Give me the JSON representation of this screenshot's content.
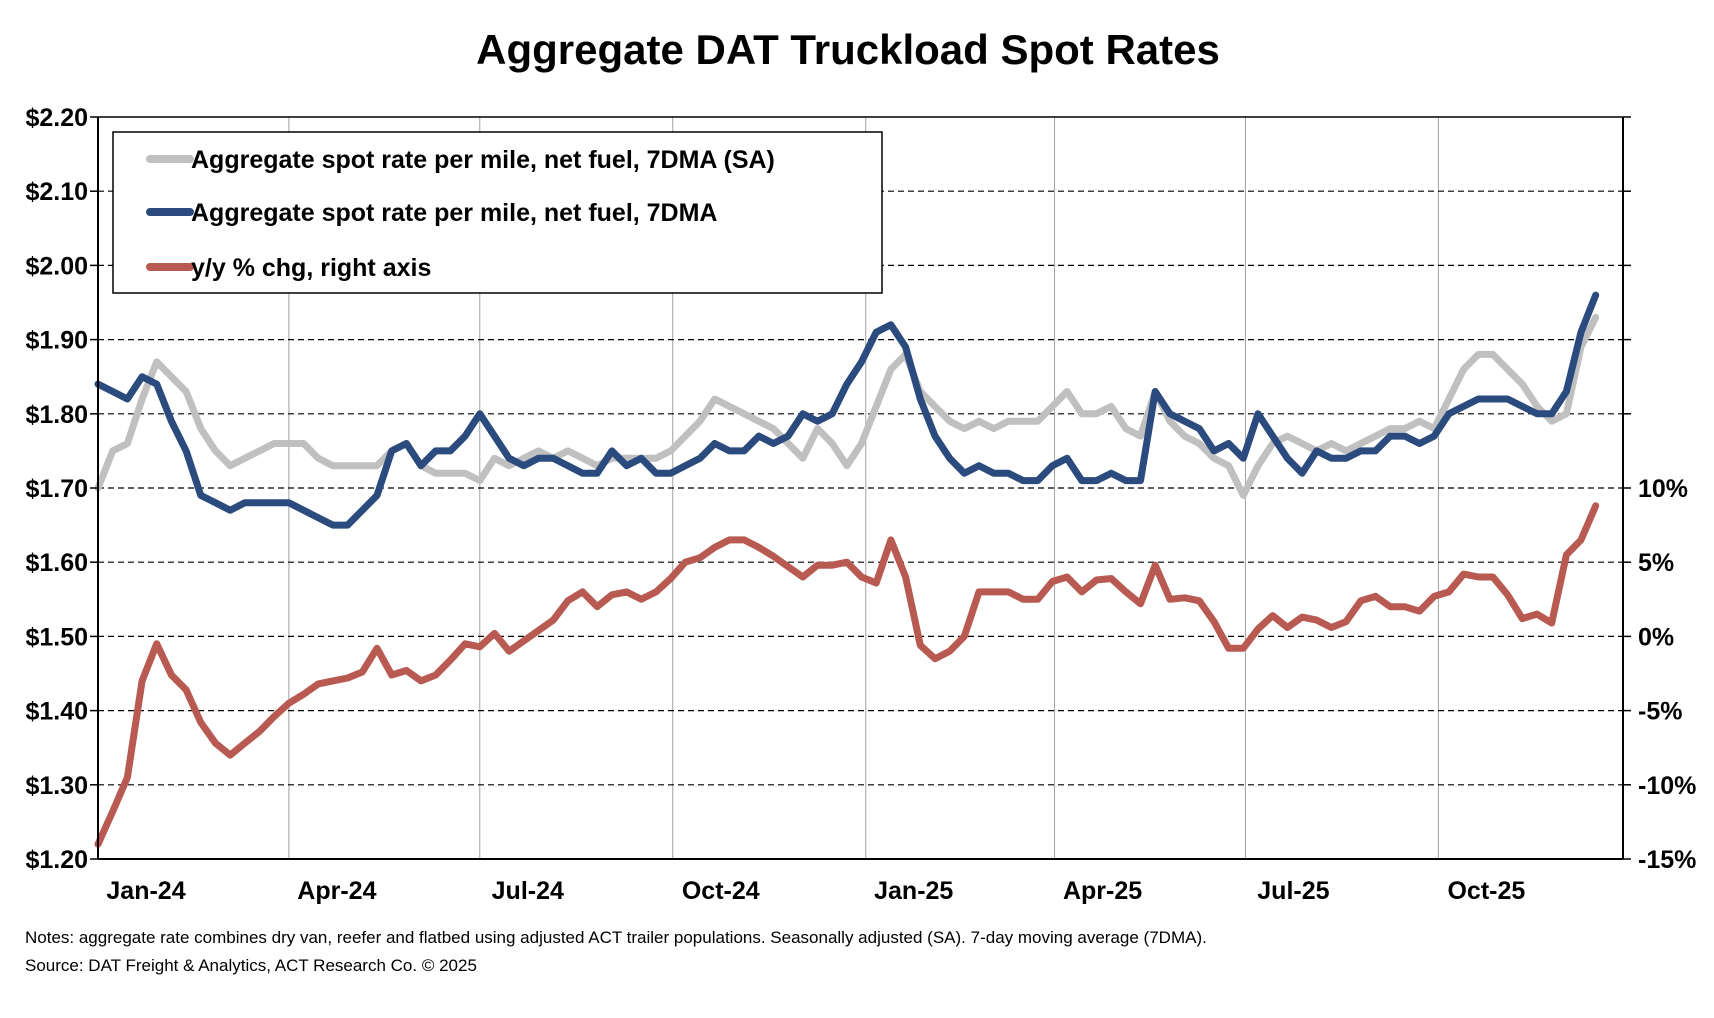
{
  "chart_data": {
    "type": "line",
    "title": "Aggregate DAT Truckload Spot Rates",
    "x_range": [
      "2024-01-01",
      "2025-12-28"
    ],
    "x_tick_labels": [
      "Jan-24",
      "Apr-24",
      "Jul-24",
      "Oct-24",
      "Jan-25",
      "Apr-25",
      "Jul-25",
      "Oct-25"
    ],
    "x_tick_dates": [
      "2024-01-01",
      "2024-04-01",
      "2024-07-01",
      "2024-10-01",
      "2025-01-01",
      "2025-04-01",
      "2025-07-01",
      "2025-10-01"
    ],
    "y_left": {
      "min": 1.2,
      "max": 2.2,
      "step": 0.1,
      "tick_labels": [
        "$1.20",
        "$1.30",
        "$1.40",
        "$1.50",
        "$1.60",
        "$1.70",
        "$1.80",
        "$1.90",
        "$2.00",
        "$2.10",
        "$2.20"
      ]
    },
    "y_right": {
      "min": -15,
      "max": 35,
      "tick_values": [
        -15,
        -10,
        -5,
        0,
        5,
        10
      ],
      "tick_labels": [
        "-15%",
        "-10%",
        "-5%",
        "0%",
        "5%",
        "10%"
      ]
    },
    "grid": {
      "horizontal": "dashed",
      "vertical": "quarterly"
    },
    "legend_placement": "top-left",
    "x": [
      "2024-01-01",
      "2024-01-08",
      "2024-01-15",
      "2024-01-22",
      "2024-01-29",
      "2024-02-05",
      "2024-02-12",
      "2024-02-19",
      "2024-02-26",
      "2024-03-04",
      "2024-03-11",
      "2024-03-18",
      "2024-03-25",
      "2024-04-01",
      "2024-04-08",
      "2024-04-15",
      "2024-04-22",
      "2024-04-29",
      "2024-05-06",
      "2024-05-13",
      "2024-05-20",
      "2024-05-27",
      "2024-06-03",
      "2024-06-10",
      "2024-06-17",
      "2024-06-24",
      "2024-07-01",
      "2024-07-08",
      "2024-07-15",
      "2024-07-22",
      "2024-07-29",
      "2024-08-05",
      "2024-08-12",
      "2024-08-19",
      "2024-08-26",
      "2024-09-02",
      "2024-09-09",
      "2024-09-16",
      "2024-09-23",
      "2024-09-30",
      "2024-10-07",
      "2024-10-14",
      "2024-10-21",
      "2024-10-28",
      "2024-11-04",
      "2024-11-11",
      "2024-11-18",
      "2024-11-25",
      "2024-12-02",
      "2024-12-09",
      "2024-12-16",
      "2024-12-23",
      "2024-12-30",
      "2025-01-06",
      "2025-01-13",
      "2025-01-20",
      "2025-01-27",
      "2025-02-03",
      "2025-02-10",
      "2025-02-17",
      "2025-02-24",
      "2025-03-03",
      "2025-03-10",
      "2025-03-17",
      "2025-03-24",
      "2025-03-31",
      "2025-04-07",
      "2025-04-14",
      "2025-04-21",
      "2025-04-28",
      "2025-05-05",
      "2025-05-12",
      "2025-05-19",
      "2025-05-26",
      "2025-06-02",
      "2025-06-09",
      "2025-06-16",
      "2025-06-23",
      "2025-06-30",
      "2025-07-07",
      "2025-07-14",
      "2025-07-21",
      "2025-07-28",
      "2025-08-04",
      "2025-08-11",
      "2025-08-18",
      "2025-08-25",
      "2025-09-01",
      "2025-09-08",
      "2025-09-15",
      "2025-09-22",
      "2025-09-29",
      "2025-10-06",
      "2025-10-13",
      "2025-10-20",
      "2025-10-27",
      "2025-11-03",
      "2025-11-10",
      "2025-11-17",
      "2025-11-24",
      "2025-12-01",
      "2025-12-08",
      "2025-12-15"
    ],
    "series": [
      {
        "name": "Aggregate spot rate per mile, net fuel, 7DMA (SA)",
        "axis": "left",
        "color": "#c0c0c0",
        "values": [
          1.7,
          1.75,
          1.76,
          1.82,
          1.87,
          1.85,
          1.83,
          1.78,
          1.75,
          1.73,
          1.74,
          1.75,
          1.76,
          1.76,
          1.76,
          1.74,
          1.73,
          1.73,
          1.73,
          1.73,
          1.75,
          1.76,
          1.73,
          1.72,
          1.72,
          1.72,
          1.71,
          1.74,
          1.73,
          1.74,
          1.75,
          1.74,
          1.75,
          1.74,
          1.73,
          1.74,
          1.74,
          1.74,
          1.74,
          1.75,
          1.77,
          1.79,
          1.82,
          1.81,
          1.8,
          1.79,
          1.78,
          1.76,
          1.74,
          1.78,
          1.76,
          1.73,
          1.76,
          1.81,
          1.86,
          1.88,
          1.83,
          1.81,
          1.79,
          1.78,
          1.79,
          1.78,
          1.79,
          1.79,
          1.79,
          1.81,
          1.83,
          1.8,
          1.8,
          1.81,
          1.78,
          1.77,
          1.83,
          1.79,
          1.77,
          1.76,
          1.74,
          1.73,
          1.69,
          1.73,
          1.76,
          1.77,
          1.76,
          1.75,
          1.76,
          1.75,
          1.76,
          1.77,
          1.78,
          1.78,
          1.79,
          1.78,
          1.82,
          1.86,
          1.88,
          1.88,
          1.86,
          1.84,
          1.81,
          1.79,
          1.8,
          1.89,
          1.93
        ]
      },
      {
        "name": "Aggregate spot rate per mile, net fuel, 7DMA",
        "axis": "left",
        "color": "#2b4a7d",
        "values": [
          1.84,
          1.83,
          1.82,
          1.85,
          1.84,
          1.79,
          1.75,
          1.69,
          1.68,
          1.67,
          1.68,
          1.68,
          1.68,
          1.68,
          1.67,
          1.66,
          1.65,
          1.65,
          1.67,
          1.69,
          1.75,
          1.76,
          1.73,
          1.75,
          1.75,
          1.77,
          1.8,
          1.77,
          1.74,
          1.73,
          1.74,
          1.74,
          1.73,
          1.72,
          1.72,
          1.75,
          1.73,
          1.74,
          1.72,
          1.72,
          1.73,
          1.74,
          1.76,
          1.75,
          1.75,
          1.77,
          1.76,
          1.77,
          1.8,
          1.79,
          1.8,
          1.84,
          1.87,
          1.91,
          1.92,
          1.89,
          1.82,
          1.77,
          1.74,
          1.72,
          1.73,
          1.72,
          1.72,
          1.71,
          1.71,
          1.73,
          1.74,
          1.71,
          1.71,
          1.72,
          1.71,
          1.71,
          1.83,
          1.8,
          1.79,
          1.78,
          1.75,
          1.76,
          1.74,
          1.8,
          1.77,
          1.74,
          1.72,
          1.75,
          1.74,
          1.74,
          1.75,
          1.75,
          1.77,
          1.77,
          1.76,
          1.77,
          1.8,
          1.81,
          1.82,
          1.82,
          1.82,
          1.81,
          1.8,
          1.8,
          1.83,
          1.91,
          1.96
        ]
      },
      {
        "name": "y/y % chg, right axis",
        "axis": "right",
        "color": "#b85a52",
        "values": [
          -14,
          -11.8,
          -9.5,
          -3,
          -0.5,
          -2.6,
          -3.6,
          -5.8,
          -7.2,
          -8,
          -7.2,
          -6.4,
          -5.4,
          -4.5,
          -3.9,
          -3.2,
          -3,
          -2.8,
          -2.4,
          -0.8,
          -2.6,
          -2.3,
          -3,
          -2.6,
          -1.6,
          -0.5,
          -0.7,
          0.2,
          -1,
          -0.3,
          0.4,
          1.1,
          2.4,
          3,
          2,
          2.8,
          3,
          2.5,
          3,
          3.9,
          5,
          5.3,
          6,
          6.5,
          6.5,
          6,
          5.4,
          4.7,
          4,
          4.8,
          4.8,
          5,
          4,
          3.6,
          6.5,
          4,
          -0.6,
          -1.5,
          -1,
          0,
          3,
          3,
          3,
          2.5,
          2.5,
          3.7,
          4,
          3,
          3.8,
          3.9,
          3,
          2.2,
          4.8,
          2.5,
          2.6,
          2.4,
          1,
          -0.8,
          -0.8,
          0.5,
          1.4,
          0.6,
          1.3,
          1.1,
          0.6,
          1,
          2.4,
          2.7,
          2,
          2,
          1.7,
          2.7,
          3,
          4.2,
          4,
          4,
          2.8,
          1.2,
          1.5,
          0.9,
          5.5,
          6.5,
          8.8
        ]
      }
    ]
  },
  "notes": {
    "line1": "Notes: aggregate rate combines dry van, reefer and flatbed using adjusted ACT trailer populations. Seasonally adjusted (SA). 7-day moving average (7DMA).",
    "line2": "Source: DAT Freight & Analytics, ACT Research Co. © 2025"
  }
}
